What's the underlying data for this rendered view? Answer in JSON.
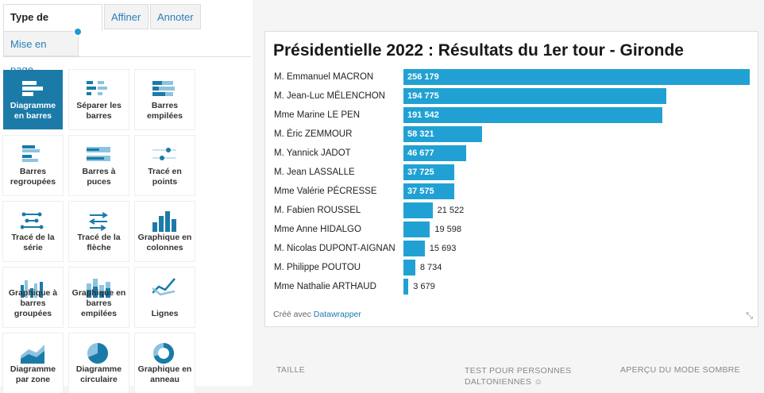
{
  "tabs": {
    "type": "Type de graphique",
    "refine": "Affiner",
    "annotate": "Annoter",
    "layout": "Mise en page"
  },
  "chart_types": [
    {
      "label": "Diagramme en barres",
      "active": true
    },
    {
      "label": "Séparer les barres"
    },
    {
      "label": "Barres empilées"
    },
    {
      "label": "Barres regroupées"
    },
    {
      "label": "Barres à puces"
    },
    {
      "label": "Tracé en points"
    },
    {
      "label": "Tracé de la série"
    },
    {
      "label": "Tracé de la flèche"
    },
    {
      "label": "Graphique en colonnes"
    },
    {
      "label": "Graphique à barres groupées"
    },
    {
      "label": "Graphique en barres empilées"
    },
    {
      "label": "Lignes"
    },
    {
      "label": "Diagramme par zone"
    },
    {
      "label": "Diagramme circulaire"
    },
    {
      "label": "Graphique en anneau"
    }
  ],
  "chart_data": {
    "type": "bar",
    "title": "Présidentielle 2022 : Résultats du 1er tour - Gironde",
    "categories": [
      "M. Emmanuel MACRON",
      "M. Jean-Luc MÉLENCHON",
      "Mme Marine LE PEN",
      "M. Éric ZEMMOUR",
      "M. Yannick JADOT",
      "M. Jean LASSALLE",
      "Mme Valérie PÉCRESSE",
      "M. Fabien ROUSSEL",
      "Mme Anne HIDALGO",
      "M. Nicolas DUPONT-AIGNAN",
      "M. Philippe POUTOU",
      "Mme Nathalie ARTHAUD"
    ],
    "values": [
      256179,
      194775,
      191542,
      58321,
      46677,
      37725,
      37575,
      21522,
      19598,
      15693,
      8734,
      3679
    ],
    "value_labels": [
      "256 179",
      "194 775",
      "191 542",
      "58 321",
      "46 677",
      "37 725",
      "37 575",
      "21 522",
      "19 598",
      "15 693",
      "8 734",
      "3 679"
    ],
    "xlim": [
      0,
      256179
    ],
    "bar_color": "#21a1d3",
    "legend": "none",
    "grid": false
  },
  "credit": {
    "prefix": "Créé avec ",
    "link": "Datawrapper"
  },
  "bottom": {
    "size": "TAILLE",
    "colorblind": "TEST POUR PERSONNES DALTONIENNES",
    "dark": "APERÇU DU MODE SOMBRE"
  }
}
